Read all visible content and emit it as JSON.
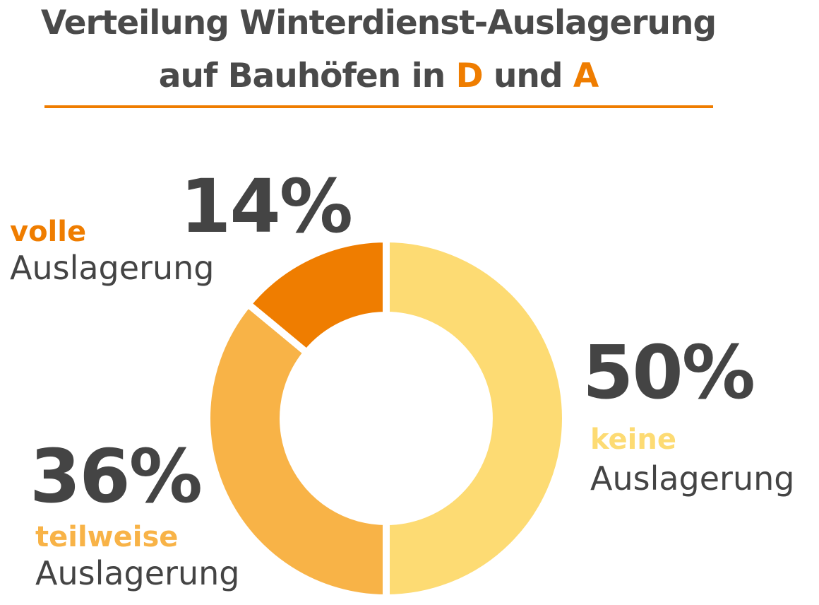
{
  "header": {
    "line1": "Verteilung Winterdienst-Auslagerung",
    "line2_prefix": "auf Bauhöfen in ",
    "line2_d": "D",
    "line2_mid": " und ",
    "line2_a": "A"
  },
  "colors": {
    "accent": "#ef7d00",
    "text": "#4a4a4a",
    "keine": "#fddb73",
    "teilweise": "#f8b347",
    "volle": "#ef7d00"
  },
  "chart_data": {
    "type": "pie",
    "donut": true,
    "title": "Verteilung Winterdienst-Auslagerung auf Bauhöfen in D und A",
    "slices": [
      {
        "category": "keine",
        "sublabel": "Auslagerung",
        "value": 50,
        "label": "50%",
        "color": "#fddb73"
      },
      {
        "category": "teilweise",
        "sublabel": "Auslagerung",
        "value": 36,
        "label": "36%",
        "color": "#f8b347"
      },
      {
        "category": "volle",
        "sublabel": "Auslagerung",
        "value": 14,
        "label": "14%",
        "color": "#ef7d00"
      }
    ]
  }
}
